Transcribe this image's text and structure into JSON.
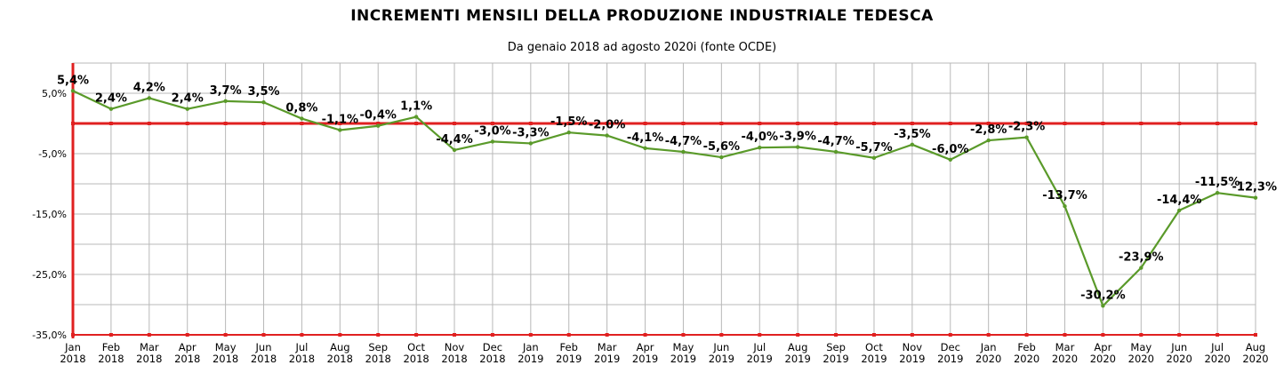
{
  "chart_data": {
    "type": "line",
    "title": "INCREMENTI MENSILI DELLA PRODUZIONE INDUSTRIALE TEDESCA",
    "subtitle": "Da genaio 2018 ad agosto 2020i (fonte OCDE)",
    "xlabel": "",
    "ylabel": "",
    "ylim": [
      -35,
      10
    ],
    "yticks": [
      5,
      -5,
      -15,
      -25,
      -35
    ],
    "ytick_labels": [
      "5,0%",
      "-5,0%",
      "-15,0%",
      "-25,0%",
      "-35,0%"
    ],
    "grid": true,
    "categories": [
      [
        "Jan",
        "2018"
      ],
      [
        "Feb",
        "2018"
      ],
      [
        "Mar",
        "2018"
      ],
      [
        "Apr",
        "2018"
      ],
      [
        "May",
        "2018"
      ],
      [
        "Jun",
        "2018"
      ],
      [
        "Jul",
        "2018"
      ],
      [
        "Aug",
        "2018"
      ],
      [
        "Sep",
        "2018"
      ],
      [
        "Oct",
        "2018"
      ],
      [
        "Nov",
        "2018"
      ],
      [
        "Dec",
        "2018"
      ],
      [
        "Jan",
        "2019"
      ],
      [
        "Feb",
        "2019"
      ],
      [
        "Mar",
        "2019"
      ],
      [
        "Apr",
        "2019"
      ],
      [
        "May",
        "2019"
      ],
      [
        "Jun",
        "2019"
      ],
      [
        "Jul",
        "2019"
      ],
      [
        "Aug",
        "2019"
      ],
      [
        "Sep",
        "2019"
      ],
      [
        "Oct",
        "2019"
      ],
      [
        "Nov",
        "2019"
      ],
      [
        "Dec",
        "2019"
      ],
      [
        "Jan",
        "2020"
      ],
      [
        "Feb",
        "2020"
      ],
      [
        "Mar",
        "2020"
      ],
      [
        "Apr",
        "2020"
      ],
      [
        "May",
        "2020"
      ],
      [
        "Jun",
        "2020"
      ],
      [
        "Jul",
        "2020"
      ],
      [
        "Aug",
        "2020"
      ]
    ],
    "series": [
      {
        "name": "",
        "color": "#5a9a2a",
        "values": [
          5.4,
          2.4,
          4.2,
          2.4,
          3.7,
          3.5,
          0.8,
          -1.1,
          -0.4,
          1.1,
          -4.4,
          -3.0,
          -3.3,
          -1.5,
          -2.0,
          -4.1,
          -4.7,
          -5.6,
          -4.0,
          -3.9,
          -4.7,
          -5.7,
          -3.5,
          -6.0,
          -2.8,
          -2.3,
          -13.7,
          -30.2,
          -23.9,
          -14.4,
          -11.5,
          -12.3
        ],
        "labels": [
          "5,4%",
          "2,4%",
          "4,2%",
          "2,4%",
          "3,7%",
          "3,5%",
          "0,8%",
          "-1,1%",
          "-0,4%",
          "1,1%",
          "-4,4%",
          "-3,0%",
          "-3,3%",
          "-1,5%",
          "-2,0%",
          "-4,1%",
          "-4,7%",
          "-5,6%",
          "-4,0%",
          "-3,9%",
          "-4,7%",
          "-5,7%",
          "-3,5%",
          "-6,0%",
          "-2,8%",
          "-2,3%",
          "-13,7%",
          "-30,2%",
          "-23,9%",
          "-14,4%",
          "-11,5%",
          "-12,3%"
        ]
      }
    ],
    "reference_line": {
      "value": 0,
      "color": "#e02020"
    },
    "axis_color": "#e02020",
    "grid_color": "#b8b8b8"
  }
}
